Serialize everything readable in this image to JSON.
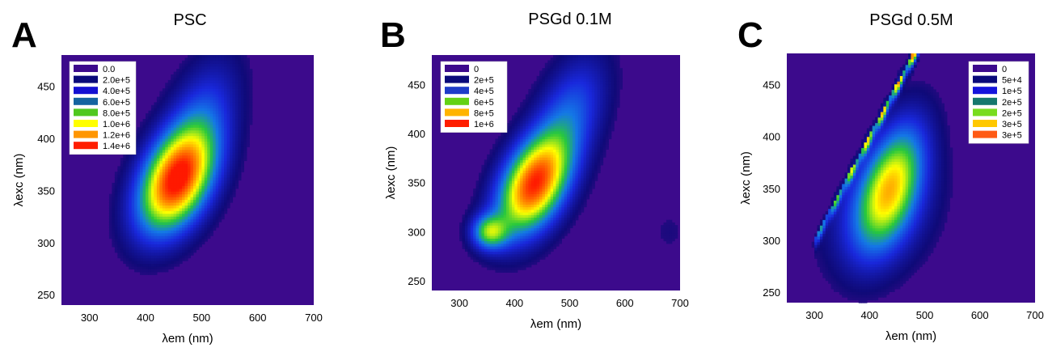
{
  "chart_data": [
    {
      "type": "heatmap",
      "panel_label": "A",
      "title": "PSC",
      "xlabel": "λem (nm)",
      "ylabel": "λexc (nm)",
      "x_ticks": [
        "300",
        "400",
        "500",
        "600",
        "700"
      ],
      "y_ticks": [
        "250",
        "300",
        "350",
        "400",
        "450"
      ],
      "xlim": [
        250,
        700
      ],
      "ylim": [
        240,
        480
      ],
      "legend_position": "top-left",
      "legend": [
        {
          "label": "0.0",
          "color": "#3c0a8c"
        },
        {
          "label": "2.0e+5",
          "color": "#0a0a7a"
        },
        {
          "label": "4.0e+5",
          "color": "#1410d2"
        },
        {
          "label": "6.0e+5",
          "color": "#1464a0"
        },
        {
          "label": "8.0e+5",
          "color": "#50c81e"
        },
        {
          "label": "1.0e+6",
          "color": "#ffff00"
        },
        {
          "label": "1.2e+6",
          "color": "#ff9600"
        },
        {
          "label": "1.4e+6",
          "color": "#ff1e00"
        }
      ],
      "peaks": [
        {
          "em": 455,
          "exc": 360,
          "intensity": 1400000.0,
          "em_sd": 42,
          "exc_sd": 34,
          "tilt": 0.9
        },
        {
          "em": 500,
          "exc": 420,
          "intensity": 300000.0,
          "em_sd": 40,
          "exc_sd": 40,
          "tilt": 0.8
        }
      ],
      "vmax": 1400000.0
    },
    {
      "type": "heatmap",
      "panel_label": "B",
      "title": "PSGd 0.1M",
      "xlabel": "λem (nm)",
      "ylabel": "λexc (nm)",
      "x_ticks": [
        "300",
        "400",
        "500",
        "600",
        "700"
      ],
      "y_ticks": [
        "250",
        "300",
        "350",
        "400",
        "450"
      ],
      "xlim": [
        250,
        700
      ],
      "ylim": [
        240,
        480
      ],
      "legend_position": "top-left",
      "legend": [
        {
          "label": "0",
          "color": "#3c0a8c"
        },
        {
          "label": "2e+5",
          "color": "#0a0a7a"
        },
        {
          "label": "4e+5",
          "color": "#1e3cc8"
        },
        {
          "label": "6e+5",
          "color": "#64d214"
        },
        {
          "label": "8e+5",
          "color": "#ffb400"
        },
        {
          "label": "1e+6",
          "color": "#ff1e00"
        }
      ],
      "peaks": [
        {
          "em": 435,
          "exc": 348,
          "intensity": 1050000.0,
          "em_sd": 40,
          "exc_sd": 34,
          "tilt": 0.9
        },
        {
          "em": 355,
          "exc": 300,
          "intensity": 550000.0,
          "em_sd": 22,
          "exc_sd": 12,
          "tilt": 0.0
        },
        {
          "em": 500,
          "exc": 420,
          "intensity": 300000.0,
          "em_sd": 40,
          "exc_sd": 40,
          "tilt": 0.8
        },
        {
          "em": 680,
          "exc": 300,
          "intensity": 40000.0,
          "em_sd": 25,
          "exc_sd": 18,
          "tilt": 0.0
        }
      ],
      "vmax": 1100000.0
    },
    {
      "type": "heatmap",
      "panel_label": "C",
      "title": "PSGd 0.5M",
      "xlabel": "λem (nm)",
      "ylabel": "λexc (nm)",
      "x_ticks": [
        "300",
        "400",
        "500",
        "600",
        "700"
      ],
      "y_ticks": [
        "250",
        "300",
        "350",
        "400",
        "450"
      ],
      "xlim": [
        250,
        700
      ],
      "ylim": [
        240,
        480
      ],
      "legend_position": "top-right",
      "legend": [
        {
          "label": "0",
          "color": "#3c0a8c"
        },
        {
          "label": "5e+4",
          "color": "#0a0a7a"
        },
        {
          "label": "1e+5",
          "color": "#1414dc"
        },
        {
          "label": "2e+5",
          "color": "#14786e"
        },
        {
          "label": "2e+5",
          "color": "#78dc1e"
        },
        {
          "label": "3e+5",
          "color": "#ffc800"
        },
        {
          "label": "3e+5",
          "color": "#ff5a14"
        }
      ],
      "peaks": [
        {
          "em": 440,
          "exc": 355,
          "intensity": 200000.0,
          "em_sd": 35,
          "exc_sd": 40,
          "tilt": 0.8
        },
        {
          "em": 420,
          "exc": 330,
          "intensity": 80000.0,
          "em_sd": 60,
          "exc_sd": 40,
          "tilt": 0.6
        }
      ],
      "scatter_line": {
        "em_start": 300,
        "em_end": 490,
        "intensity": 320000.0
      },
      "vmax": 340000.0
    }
  ]
}
